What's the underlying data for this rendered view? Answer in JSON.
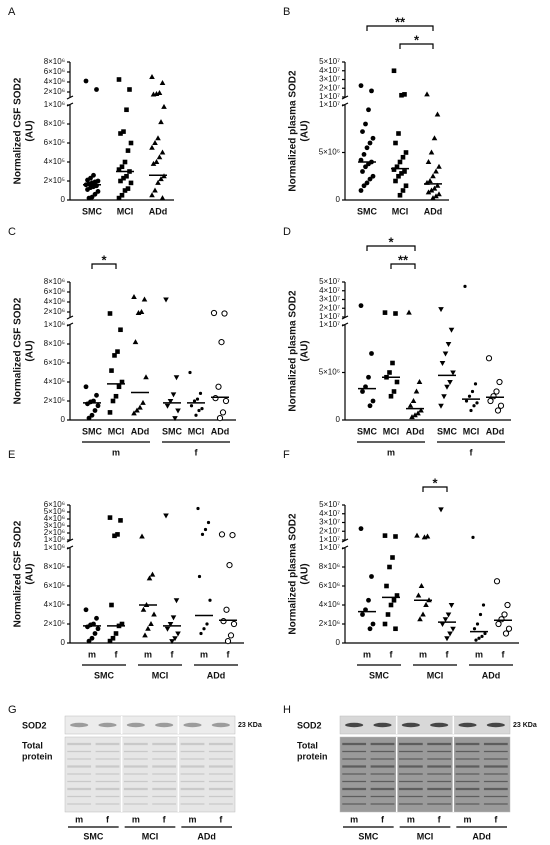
{
  "chart_data": [
    {
      "type": "dot",
      "label": "A",
      "ylabel": [
        "Normalized CSF SOD2",
        "(AU)"
      ],
      "categories": [
        "SMC",
        "MCI",
        "ADd"
      ],
      "markers": [
        "circle",
        "square",
        "triangle"
      ],
      "values": [
        [
          4200000,
          2500000,
          260000,
          230000,
          210000,
          200000,
          190000,
          180000,
          170000,
          160000,
          150000,
          140000,
          130000,
          110000,
          90000,
          60000,
          30000,
          20000
        ],
        [
          4500000,
          2500000,
          950000,
          720000,
          700000,
          600000,
          520000,
          400000,
          350000,
          320000,
          300000,
          250000,
          230000,
          200000,
          180000,
          120000,
          100000,
          50000,
          20000
        ],
        [
          5000000,
          3800000,
          1800000,
          1600000,
          1500000,
          980000,
          820000,
          650000,
          600000,
          550000,
          500000,
          450000,
          400000,
          380000,
          250000,
          220000,
          180000,
          100000,
          50000,
          20000
        ]
      ],
      "medians": [
        160000,
        300000,
        260000
      ],
      "ylim": [
        0,
        1000000
      ],
      "yticks": [
        0,
        {
          "value": 200000,
          "label": "2×10⁵"
        },
        {
          "value": 400000,
          "label": "4×10⁵"
        },
        {
          "value": 600000,
          "label": "6×10⁵"
        },
        {
          "value": 800000,
          "label": "8×10⁵"
        },
        {
          "value": 1000000,
          "label": "1×10⁶"
        }
      ],
      "upper_ylim": [
        1000000,
        8000000
      ],
      "upper_yticks": [
        {
          "value": 2000000,
          "label": "2×10⁶"
        },
        {
          "value": 4000000,
          "label": "4×10⁶"
        },
        {
          "value": 6000000,
          "label": "6×10⁶"
        },
        {
          "value": 8000000,
          "label": "8×10⁶"
        }
      ],
      "brackets": []
    },
    {
      "type": "dot",
      "label": "B",
      "ylabel": [
        "Normalized plasma SOD2",
        "(AU)"
      ],
      "categories": [
        "SMC",
        "MCI",
        "ADd"
      ],
      "markers": [
        "circle",
        "square",
        "triangle"
      ],
      "values": [
        [
          23000000,
          17000000,
          9500000,
          8000000,
          7200000,
          6500000,
          6000000,
          5500000,
          4800000,
          4200000,
          4000000,
          3800000,
          3500000,
          3000000,
          2500000,
          2200000,
          1800000,
          1500000,
          1000000
        ],
        [
          40000000,
          13000000,
          12000000,
          7000000,
          6000000,
          5000000,
          4500000,
          4000000,
          3500000,
          3200000,
          3000000,
          2800000,
          2500000,
          2000000,
          1500000,
          1000000,
          500000
        ],
        [
          13000000,
          9000000,
          6500000,
          5000000,
          4000000,
          3500000,
          3000000,
          2500000,
          2000000,
          1800000,
          1500000,
          1200000,
          1000000,
          800000,
          600000,
          400000,
          200000
        ]
      ],
      "medians": [
        4000000,
        3300000,
        1700000
      ],
      "ylim": [
        0,
        10000000
      ],
      "yticks": [
        0,
        {
          "value": 5000000,
          "label": "5×10⁶"
        },
        {
          "value": 10000000,
          "label": "1×10⁷"
        }
      ],
      "upper_ylim": [
        10000000,
        50000000
      ],
      "upper_yticks": [
        {
          "value": 10000000,
          "label": "1×10⁷"
        },
        {
          "value": 20000000,
          "label": "2×10⁷"
        },
        {
          "value": 30000000,
          "label": "3×10⁷"
        },
        {
          "value": 40000000,
          "label": "4×10⁷"
        },
        {
          "value": 50000000,
          "label": "5×10⁷"
        }
      ],
      "brackets": [
        {
          "from": 0,
          "to": 2,
          "label": "**"
        },
        {
          "from": 1,
          "to": 2,
          "label": "*"
        }
      ]
    },
    {
      "type": "dot",
      "label": "C",
      "ylabel": [
        "Normalized CSF SOD2",
        "(AU)"
      ],
      "categories": [
        "SMC",
        "MCI",
        "ADd",
        "SMC",
        "MCI",
        "ADd"
      ],
      "subgroups": [
        {
          "label": "m",
          "from": 0,
          "to": 2
        },
        {
          "label": "f",
          "from": 3,
          "to": 5
        }
      ],
      "markers": [
        "circle",
        "square",
        "triangle",
        "triangle-down",
        "dot",
        "circle-open"
      ],
      "values": [
        [
          350000,
          260000,
          200000,
          190000,
          170000,
          150000,
          100000,
          50000,
          20000
        ],
        [
          1700000,
          950000,
          720000,
          680000,
          520000,
          400000,
          350000,
          250000,
          200000,
          80000
        ],
        [
          5000000,
          4500000,
          2000000,
          1800000,
          820000,
          450000,
          180000,
          130000,
          100000,
          70000
        ],
        [
          4500000,
          450000,
          270000,
          200000,
          150000,
          100000,
          20000
        ],
        [
          500000,
          280000,
          220000,
          200000,
          150000,
          120000,
          100000,
          50000
        ],
        [
          1800000,
          1700000,
          820000,
          350000,
          230000,
          200000,
          80000,
          20000
        ]
      ],
      "medians": [
        180000,
        380000,
        290000,
        180000,
        180000,
        240000
      ],
      "ylim": [
        0,
        1000000
      ],
      "yticks": [
        0,
        {
          "value": 200000,
          "label": "2×10⁵"
        },
        {
          "value": 400000,
          "label": "4×10⁵"
        },
        {
          "value": 600000,
          "label": "6×10⁵"
        },
        {
          "value": 800000,
          "label": "8×10⁵"
        },
        {
          "value": 1000000,
          "label": "1×10⁶"
        }
      ],
      "upper_ylim": [
        1000000,
        8000000
      ],
      "upper_yticks": [
        {
          "value": 2000000,
          "label": "2×10⁶"
        },
        {
          "value": 4000000,
          "label": "4×10⁶"
        },
        {
          "value": 6000000,
          "label": "6×10⁶"
        },
        {
          "value": 8000000,
          "label": "8×10⁶"
        }
      ],
      "brackets": [
        {
          "from": 0,
          "to": 1,
          "label": "*"
        }
      ]
    },
    {
      "type": "dot",
      "label": "D",
      "ylabel": [
        "Normalized plasma SOD2",
        "(AU)"
      ],
      "categories": [
        "SMC",
        "MCI",
        "ADd",
        "SMC",
        "MCI",
        "ADd"
      ],
      "subgroups": [
        {
          "label": "m",
          "from": 0,
          "to": 2
        },
        {
          "label": "f",
          "from": 3,
          "to": 5
        }
      ],
      "markers": [
        "circle",
        "square",
        "triangle",
        "triangle-down",
        "dot",
        "circle-open"
      ],
      "values": [
        [
          23000000,
          7000000,
          4500000,
          3500000,
          3000000,
          2000000,
          1500000
        ],
        [
          15000000,
          14000000,
          6000000,
          5000000,
          4500000,
          4000000,
          3000000,
          2500000
        ],
        [
          15000000,
          4000000,
          3000000,
          2000000,
          1500000,
          1000000,
          700000,
          500000,
          300000
        ],
        [
          19000000,
          9500000,
          8000000,
          7000000,
          6000000,
          5000000,
          4000000,
          3500000,
          2500000,
          1500000
        ],
        [
          45000000,
          3800000,
          3000000,
          2500000,
          2000000,
          1800000,
          1500000,
          1000000
        ],
        [
          6500000,
          4000000,
          3000000,
          2500000,
          2000000,
          1500000,
          1000000
        ]
      ],
      "medians": [
        3300000,
        4500000,
        1200000,
        4700000,
        2200000,
        2400000
      ],
      "ylim": [
        0,
        10000000
      ],
      "yticks": [
        0,
        {
          "value": 5000000,
          "label": "5×10⁶"
        },
        {
          "value": 10000000,
          "label": "1×10⁷"
        }
      ],
      "upper_ylim": [
        10000000,
        50000000
      ],
      "upper_yticks": [
        {
          "value": 10000000,
          "label": "1×10⁷"
        },
        {
          "value": 20000000,
          "label": "2×10⁷"
        },
        {
          "value": 30000000,
          "label": "3×10⁷"
        },
        {
          "value": 40000000,
          "label": "4×10⁷"
        },
        {
          "value": 50000000,
          "label": "5×10⁷"
        }
      ],
      "brackets": [
        {
          "from": 0,
          "to": 2,
          "label": "*"
        },
        {
          "from": 1,
          "to": 2,
          "label": "**"
        }
      ]
    },
    {
      "type": "dot",
      "label": "E",
      "ylabel": [
        "Normalized CSF SOD2",
        "(AU)"
      ],
      "categories": [
        "m",
        "f",
        "m",
        "f",
        "m",
        "f"
      ],
      "subgroups": [
        {
          "label": "SMC",
          "from": 0,
          "to": 1
        },
        {
          "label": "MCI",
          "from": 2,
          "to": 3
        },
        {
          "label": "ADd",
          "from": 4,
          "to": 5
        }
      ],
      "markers": [
        "circle",
        "square",
        "triangle",
        "triangle-down",
        "dot",
        "circle-open"
      ],
      "values": [
        [
          350000,
          260000,
          200000,
          190000,
          170000,
          150000,
          100000,
          50000,
          20000
        ],
        [
          4200000,
          3800000,
          1800000,
          1600000,
          400000,
          200000,
          180000,
          100000,
          50000,
          20000
        ],
        [
          1500000,
          720000,
          680000,
          400000,
          350000,
          300000,
          200000,
          150000,
          80000
        ],
        [
          4500000,
          450000,
          270000,
          200000,
          150000,
          100000,
          50000,
          20000
        ],
        [
          5500000,
          3500000,
          2500000,
          1800000,
          700000,
          450000,
          200000,
          150000,
          100000
        ],
        [
          1800000,
          1700000,
          820000,
          350000,
          230000,
          200000,
          80000,
          20000
        ]
      ],
      "medians": [
        180000,
        180000,
        400000,
        180000,
        290000,
        240000
      ],
      "ylim": [
        0,
        1000000
      ],
      "yticks": [
        0,
        {
          "value": 200000,
          "label": "2×10⁵"
        },
        {
          "value": 400000,
          "label": "4×10⁵"
        },
        {
          "value": 600000,
          "label": "6×10⁵"
        },
        {
          "value": 800000,
          "label": "8×10⁵"
        },
        {
          "value": 1000000,
          "label": "1×10⁶"
        }
      ],
      "upper_ylim": [
        1000000,
        6000000
      ],
      "upper_yticks": [
        {
          "value": 1000000,
          "label": "1×10⁶"
        },
        {
          "value": 2000000,
          "label": "2×10⁶"
        },
        {
          "value": 3000000,
          "label": "3×10⁶"
        },
        {
          "value": 4000000,
          "label": "4×10⁶"
        },
        {
          "value": 5000000,
          "label": "5×10⁶"
        },
        {
          "value": 6000000,
          "label": "6×10⁶"
        }
      ],
      "brackets": []
    },
    {
      "type": "dot",
      "label": "F",
      "ylabel": [
        "Normalized plasma SOD2",
        "(AU)"
      ],
      "categories": [
        "m",
        "f",
        "m",
        "f",
        "m",
        "f"
      ],
      "subgroups": [
        {
          "label": "SMC",
          "from": 0,
          "to": 1
        },
        {
          "label": "MCI",
          "from": 2,
          "to": 3
        },
        {
          "label": "ADd",
          "from": 4,
          "to": 5
        }
      ],
      "markers": [
        "circle",
        "square",
        "triangle",
        "triangle-down",
        "dot",
        "circle-open"
      ],
      "values": [
        [
          23000000,
          7000000,
          4500000,
          3500000,
          3000000,
          2000000,
          1500000
        ],
        [
          15000000,
          14000000,
          9000000,
          8000000,
          6000000,
          5000000,
          4500000,
          4000000,
          3000000,
          2000000,
          1500000
        ],
        [
          15000000,
          14000000,
          13000000,
          6000000,
          5000000,
          4500000,
          4000000,
          3000000,
          2500000
        ],
        [
          45000000,
          4000000,
          3000000,
          2500000,
          2000000,
          1500000,
          1000000,
          500000
        ],
        [
          13000000,
          4000000,
          3000000,
          2000000,
          1500000,
          1000000,
          700000,
          500000,
          300000
        ],
        [
          6500000,
          4000000,
          3000000,
          2500000,
          2000000,
          1500000,
          1000000
        ]
      ],
      "medians": [
        3300000,
        4800000,
        4500000,
        2200000,
        1200000,
        2400000
      ],
      "ylim": [
        0,
        10000000
      ],
      "yticks": [
        0,
        {
          "value": 2000000,
          "label": "2×10⁶"
        },
        {
          "value": 4000000,
          "label": "4×10⁶"
        },
        {
          "value": 6000000,
          "label": "6×10⁶"
        },
        {
          "value": 8000000,
          "label": "8×10⁶"
        },
        {
          "value": 10000000,
          "label": "1×10⁷"
        }
      ],
      "upper_ylim": [
        10000000,
        50000000
      ],
      "upper_yticks": [
        {
          "value": 10000000,
          "label": "1×10⁷"
        },
        {
          "value": 20000000,
          "label": "2×10⁷"
        },
        {
          "value": 30000000,
          "label": "3×10⁷"
        },
        {
          "value": 40000000,
          "label": "4×10⁷"
        },
        {
          "value": 50000000,
          "label": "5×10⁷"
        }
      ],
      "brackets": [
        {
          "from": 2,
          "to": 3,
          "label": "*"
        }
      ]
    }
  ],
  "blots": [
    {
      "label": "G",
      "protein": "SOD2",
      "size": "23 KDa",
      "total": [
        "Total",
        "protein"
      ],
      "tone": "light",
      "lanes": [
        "m",
        "f",
        "m",
        "f",
        "m",
        "f"
      ],
      "groups": [
        "SMC",
        "MCI",
        "ADd"
      ]
    },
    {
      "label": "H",
      "protein": "SOD2",
      "size": "23 KDa",
      "total": [
        "Total",
        "protein"
      ],
      "tone": "dark",
      "lanes": [
        "m",
        "f",
        "m",
        "f",
        "m",
        "f"
      ],
      "groups": [
        "SMC",
        "MCI",
        "ADd"
      ]
    }
  ]
}
